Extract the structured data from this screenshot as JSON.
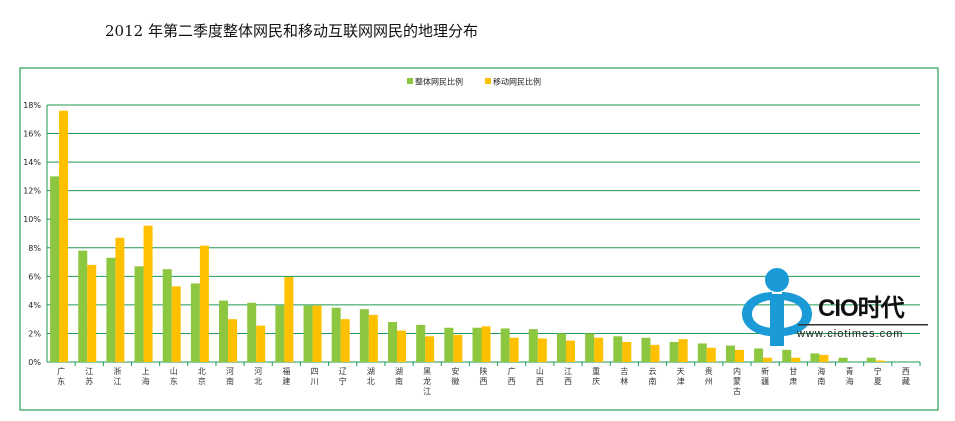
{
  "chart_data": {
    "type": "bar",
    "title": "2012 年第二季度整体网民和移动互联网网民的地理分布",
    "categories": [
      "广东",
      "江苏",
      "浙江",
      "上海",
      "山东",
      "北京",
      "河南",
      "河北",
      "福建",
      "四川",
      "辽宁",
      "湖北",
      "湖南",
      "黑龙江",
      "安徽",
      "陕西",
      "广西",
      "山西",
      "江西",
      "重庆",
      "吉林",
      "云南",
      "天津",
      "贵州",
      "内蒙古",
      "新疆",
      "甘肃",
      "海南",
      "青海",
      "宁夏",
      "西藏"
    ],
    "series": [
      {
        "name": "整体网民比例",
        "color": "#8DC63F",
        "values": [
          13.0,
          7.8,
          7.3,
          6.7,
          6.5,
          5.5,
          4.3,
          4.15,
          3.95,
          3.95,
          3.8,
          3.7,
          2.8,
          2.6,
          2.4,
          2.4,
          2.35,
          2.3,
          2.0,
          2.0,
          1.8,
          1.7,
          1.4,
          1.3,
          1.15,
          0.95,
          0.85,
          0.6,
          0.3,
          0.3,
          0.0
        ]
      },
      {
        "name": "移动网民比例",
        "color": "#FFC000",
        "values": [
          17.6,
          6.8,
          8.7,
          9.55,
          5.3,
          8.15,
          3.0,
          2.55,
          5.95,
          3.95,
          3.0,
          3.3,
          2.2,
          1.8,
          1.9,
          2.5,
          1.7,
          1.65,
          1.5,
          1.7,
          1.4,
          1.2,
          1.6,
          1.0,
          0.85,
          0.3,
          0.3,
          0.5,
          0.0,
          0.1,
          0.0
        ]
      }
    ],
    "yticks": [
      "0%",
      "2%",
      "4%",
      "6%",
      "8%",
      "10%",
      "12%",
      "14%",
      "16%",
      "18%"
    ],
    "ylim": [
      0,
      18
    ],
    "grid": true,
    "legend": "top-center"
  },
  "logo": {
    "name": "CIO时代",
    "url": "www.ciotimes.com"
  }
}
